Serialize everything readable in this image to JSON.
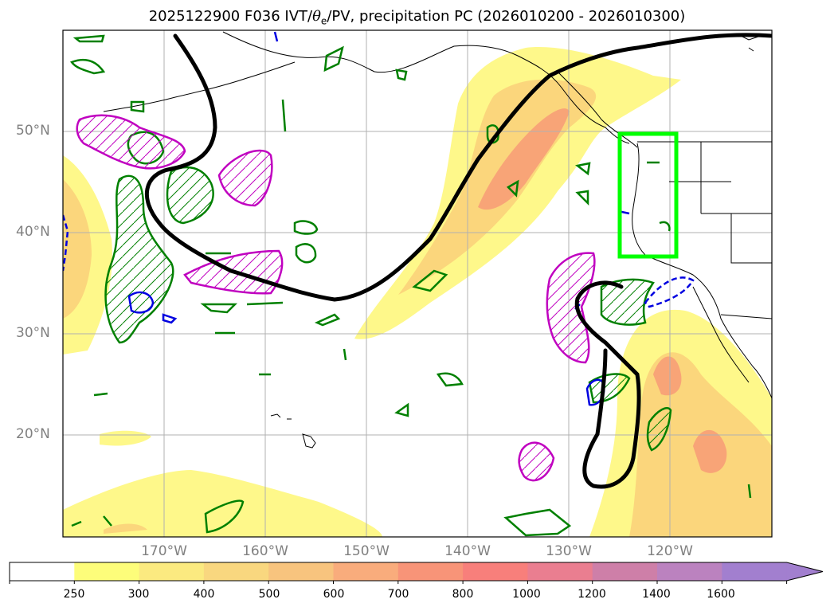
{
  "title": {
    "prefix": "2025122900 F036 IVT/",
    "theta": "θ",
    "sub": "e",
    "suffix": "/PV, precipitation PC (2026010200 - 2026010300)"
  },
  "axes": {
    "lat_labels": [
      "50°N",
      "40°N",
      "30°N",
      "20°N"
    ],
    "lon_labels": [
      "170°W",
      "160°W",
      "150°W",
      "140°W",
      "130°W",
      "120°W"
    ]
  },
  "colorbar": {
    "ticks": [
      "250",
      "300",
      "400",
      "500",
      "600",
      "700",
      "800",
      "1000",
      "1200",
      "1400",
      "1600"
    ],
    "colors": [
      "#ffffff",
      "#fdfd7a",
      "#fbea80",
      "#f9d77f",
      "#f8c47e",
      "#f9ac7c",
      "#f89478",
      "#f87f7b",
      "#ea7e90",
      "#ce7fa8",
      "#bb82bf",
      "#a27fcf"
    ],
    "extend": "max"
  },
  "styles": {
    "ivt_fill_light": "#fef88a",
    "ivt_fill_mid": "#fbd67c",
    "ivt_fill_high": "#f8a477",
    "pv_contour_color": "#c000c0",
    "precip_contour_color": "#008000",
    "negative_contour_color": "#0000e0",
    "theta_e_contour_color": "#000000",
    "domain_box_color": "#00ff00",
    "gridline_color": "#b0b0b0",
    "label_color": "#808080"
  }
}
